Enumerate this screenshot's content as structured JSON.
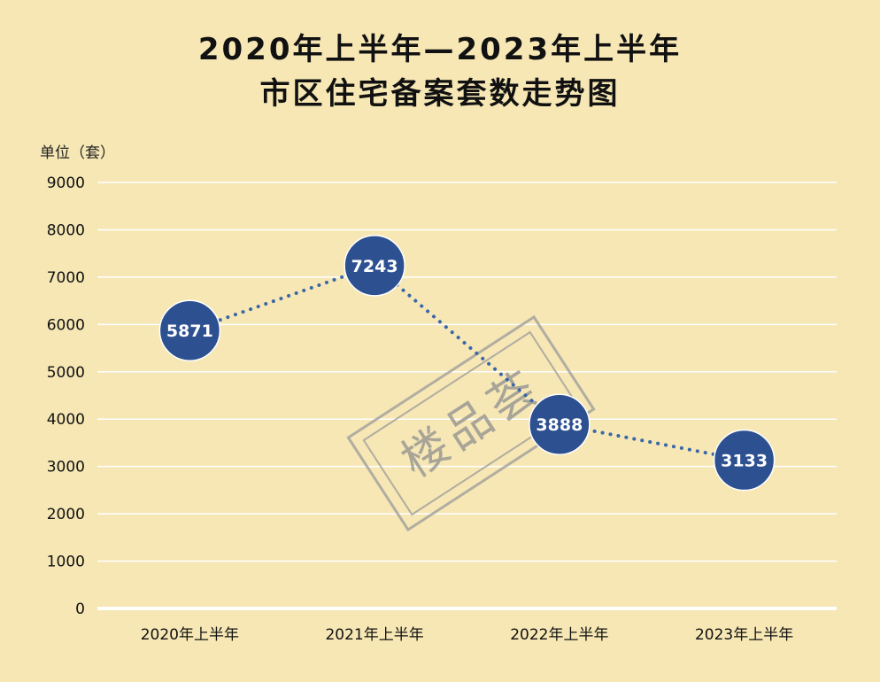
{
  "chart_data": {
    "type": "line",
    "title": "2020年上半年—2023年上半年",
    "subtitle": "市区住宅备案套数走势图",
    "unit_label": "单位（套）",
    "categories": [
      "2020年上半年",
      "2021年上半年",
      "2022年上半年",
      "2023年上半年"
    ],
    "series": [
      {
        "values": [
          5871,
          7243,
          3888,
          3133
        ],
        "labels": [
          "5871",
          "7243",
          "3888",
          "3133"
        ]
      }
    ],
    "ylim": [
      0,
      9000
    ],
    "yticks": [
      "0",
      "1000",
      "2000",
      "3000",
      "4000",
      "5000",
      "6000",
      "7000",
      "8000",
      "9000"
    ],
    "grid": true,
    "watermark": "楼品荟",
    "colors": {
      "background": "#f6e7b5",
      "marker": "#2d5090",
      "marker_border": "#ffffff",
      "line": "#3a67a8",
      "grid": "#ffffff"
    }
  }
}
